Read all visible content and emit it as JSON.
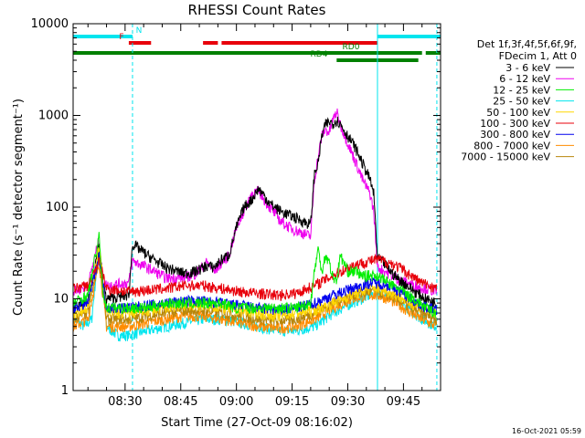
{
  "chart_data": {
    "type": "line",
    "title": "RHESSI Count Rates",
    "xlabel": "Start Time (27-Oct-09 08:16:02)",
    "ylabel": "Count Rate (s⁻¹ detector segment⁻¹)",
    "yscale": "log",
    "ylim": [
      1,
      10000
    ],
    "xlim_minutes_after_0816": [
      0,
      99
    ],
    "x_tick_labels": [
      "08:30",
      "08:45",
      "09:00",
      "09:15",
      "09:30",
      "09:45"
    ],
    "x_tick_minutes": [
      14,
      29,
      44,
      59,
      74,
      89
    ],
    "y_tick_labels": [
      "1",
      "10",
      "100",
      "1000",
      "10000"
    ],
    "y_tick_values": [
      1,
      10,
      100,
      1000,
      10000
    ],
    "legend_header": [
      "Det 1f,3f,4f,5f,6f,9f,",
      "FDecim 1, Att 0"
    ],
    "legend_placement": "right",
    "footer_date": "16-Oct-2021 05:59",
    "flags": [
      {
        "label": "N",
        "color": "#00e5ee",
        "segments": [
          [
            0,
            16
          ],
          [
            82,
            99
          ]
        ]
      },
      {
        "label": "F",
        "color": "#e8000b",
        "segments": [
          [
            15,
            21
          ],
          [
            35,
            39
          ],
          [
            40,
            82
          ]
        ]
      },
      {
        "label": "RD0",
        "color": "#008000",
        "segments": [
          [
            0,
            94
          ],
          [
            95,
            99
          ]
        ]
      },
      {
        "label": "RD4",
        "color": "#008000",
        "segments": [
          [
            71,
            93
          ]
        ]
      }
    ],
    "vertical_lines": [
      {
        "x": 0,
        "color": "#00e5ee",
        "style": "solid"
      },
      {
        "x": 16,
        "color": "#00e5ee",
        "style": "dashed"
      },
      {
        "x": 82,
        "color": "#00e5ee",
        "style": "solid"
      },
      {
        "x": 98,
        "color": "#00e5ee",
        "style": "dashed"
      }
    ],
    "series": [
      {
        "name": "3 - 6 keV",
        "color": "#000000",
        "points": [
          [
            0,
            8
          ],
          [
            4,
            9
          ],
          [
            7,
            40
          ],
          [
            8,
            15
          ],
          [
            9,
            10
          ],
          [
            15,
            11
          ],
          [
            16,
            40
          ],
          [
            20,
            30
          ],
          [
            25,
            22
          ],
          [
            30,
            19
          ],
          [
            33,
            20
          ],
          [
            36,
            23
          ],
          [
            38,
            22
          ],
          [
            40,
            27
          ],
          [
            42,
            30
          ],
          [
            44,
            60
          ],
          [
            46,
            100
          ],
          [
            48,
            120
          ],
          [
            50,
            160
          ],
          [
            53,
            110
          ],
          [
            56,
            90
          ],
          [
            59,
            80
          ],
          [
            62,
            70
          ],
          [
            64,
            65
          ],
          [
            65,
            230
          ],
          [
            66,
            300
          ],
          [
            67,
            600
          ],
          [
            68,
            800
          ],
          [
            69,
            850
          ],
          [
            70,
            820
          ],
          [
            71,
            900
          ],
          [
            72,
            800
          ],
          [
            74,
            600
          ],
          [
            76,
            450
          ],
          [
            78,
            300
          ],
          [
            80,
            200
          ],
          [
            81,
            140
          ],
          [
            82,
            28
          ],
          [
            84,
            24
          ],
          [
            86,
            19
          ],
          [
            88,
            16
          ],
          [
            90,
            14
          ],
          [
            92,
            12
          ],
          [
            95,
            10
          ],
          [
            98,
            9
          ]
        ]
      },
      {
        "name": "6 - 12 keV",
        "color": "#ee00ee",
        "points": [
          [
            0,
            12
          ],
          [
            4,
            14
          ],
          [
            7,
            45
          ],
          [
            8,
            16
          ],
          [
            9,
            14
          ],
          [
            15,
            15
          ],
          [
            16,
            26
          ],
          [
            20,
            22
          ],
          [
            25,
            17
          ],
          [
            30,
            17
          ],
          [
            33,
            19
          ],
          [
            36,
            25
          ],
          [
            38,
            20
          ],
          [
            40,
            25
          ],
          [
            42,
            30
          ],
          [
            44,
            60
          ],
          [
            46,
            90
          ],
          [
            48,
            140
          ],
          [
            50,
            150
          ],
          [
            53,
            100
          ],
          [
            56,
            70
          ],
          [
            59,
            58
          ],
          [
            62,
            52
          ],
          [
            64,
            48
          ],
          [
            65,
            200
          ],
          [
            66,
            350
          ],
          [
            67,
            600
          ],
          [
            68,
            700
          ],
          [
            69,
            650
          ],
          [
            70,
            900
          ],
          [
            71,
            1100
          ],
          [
            72,
            800
          ],
          [
            74,
            500
          ],
          [
            76,
            320
          ],
          [
            78,
            200
          ],
          [
            80,
            140
          ],
          [
            81,
            90
          ],
          [
            82,
            22
          ],
          [
            84,
            20
          ],
          [
            86,
            18
          ],
          [
            88,
            16
          ],
          [
            90,
            15
          ],
          [
            92,
            14
          ],
          [
            95,
            13
          ],
          [
            98,
            12
          ]
        ]
      },
      {
        "name": "12 - 25 keV",
        "color": "#00ee00",
        "points": [
          [
            0,
            9
          ],
          [
            4,
            11
          ],
          [
            7,
            48
          ],
          [
            8,
            12
          ],
          [
            9,
            8
          ],
          [
            15,
            8
          ],
          [
            20,
            8
          ],
          [
            25,
            9
          ],
          [
            30,
            9
          ],
          [
            36,
            9
          ],
          [
            40,
            9
          ],
          [
            44,
            8
          ],
          [
            46,
            8
          ],
          [
            50,
            8
          ],
          [
            55,
            8
          ],
          [
            60,
            8
          ],
          [
            64,
            9
          ],
          [
            65,
            20
          ],
          [
            66,
            35
          ],
          [
            67,
            20
          ],
          [
            68,
            30
          ],
          [
            69,
            25
          ],
          [
            70,
            17
          ],
          [
            71,
            16
          ],
          [
            72,
            30
          ],
          [
            74,
            20
          ],
          [
            76,
            20
          ],
          [
            78,
            18
          ],
          [
            80,
            18
          ],
          [
            82,
            18
          ],
          [
            84,
            16
          ],
          [
            86,
            14
          ],
          [
            88,
            13
          ],
          [
            90,
            11
          ],
          [
            92,
            10
          ],
          [
            95,
            8
          ],
          [
            98,
            7
          ]
        ]
      },
      {
        "name": "25 - 50 keV",
        "color": "#00e5ee",
        "points": [
          [
            0,
            6
          ],
          [
            3,
            5
          ],
          [
            5,
            6
          ],
          [
            7,
            40
          ],
          [
            9,
            5
          ],
          [
            12,
            4
          ],
          [
            15,
            4
          ],
          [
            20,
            4.5
          ],
          [
            25,
            5
          ],
          [
            30,
            5.5
          ],
          [
            35,
            6
          ],
          [
            40,
            6
          ],
          [
            45,
            5.5
          ],
          [
            50,
            5
          ],
          [
            55,
            4.5
          ],
          [
            60,
            4.5
          ],
          [
            65,
            5
          ],
          [
            70,
            7
          ],
          [
            75,
            9
          ],
          [
            80,
            11
          ],
          [
            82,
            12
          ],
          [
            85,
            11
          ],
          [
            88,
            9
          ],
          [
            91,
            7.5
          ],
          [
            94,
            6
          ],
          [
            98,
            5
          ]
        ]
      },
      {
        "name": "50 - 100 keV",
        "color": "#ffd700",
        "points": [
          [
            0,
            7
          ],
          [
            4,
            8
          ],
          [
            7,
            38
          ],
          [
            9,
            7
          ],
          [
            15,
            7
          ],
          [
            20,
            7.5
          ],
          [
            25,
            8
          ],
          [
            30,
            8.5
          ],
          [
            35,
            8.5
          ],
          [
            40,
            8
          ],
          [
            45,
            7.5
          ],
          [
            50,
            7
          ],
          [
            55,
            6.5
          ],
          [
            60,
            7
          ],
          [
            65,
            7.5
          ],
          [
            70,
            9
          ],
          [
            75,
            11
          ],
          [
            80,
            13
          ],
          [
            82,
            13
          ],
          [
            85,
            12
          ],
          [
            88,
            10.5
          ],
          [
            91,
            9
          ],
          [
            94,
            8
          ],
          [
            98,
            7
          ]
        ]
      },
      {
        "name": "100 - 300 keV",
        "color": "#e8000b",
        "points": [
          [
            0,
            13
          ],
          [
            4,
            14
          ],
          [
            7,
            26
          ],
          [
            9,
            13
          ],
          [
            15,
            12
          ],
          [
            20,
            12.5
          ],
          [
            25,
            13
          ],
          [
            30,
            14
          ],
          [
            35,
            14
          ],
          [
            40,
            13
          ],
          [
            45,
            12
          ],
          [
            50,
            11.5
          ],
          [
            55,
            11
          ],
          [
            60,
            11.5
          ],
          [
            65,
            14
          ],
          [
            70,
            18
          ],
          [
            75,
            23
          ],
          [
            80,
            26
          ],
          [
            82,
            27
          ],
          [
            85,
            25
          ],
          [
            88,
            22
          ],
          [
            91,
            18
          ],
          [
            94,
            15
          ],
          [
            98,
            13
          ]
        ]
      },
      {
        "name": "300 - 800 keV",
        "color": "#0000ee",
        "points": [
          [
            0,
            8
          ],
          [
            4,
            9
          ],
          [
            7,
            30
          ],
          [
            9,
            8
          ],
          [
            15,
            8
          ],
          [
            20,
            8.5
          ],
          [
            25,
            9
          ],
          [
            30,
            9.5
          ],
          [
            35,
            9.5
          ],
          [
            40,
            9
          ],
          [
            45,
            8.5
          ],
          [
            50,
            8
          ],
          [
            55,
            7.5
          ],
          [
            60,
            8
          ],
          [
            65,
            9
          ],
          [
            70,
            11
          ],
          [
            75,
            13
          ],
          [
            80,
            15
          ],
          [
            82,
            15
          ],
          [
            85,
            14
          ],
          [
            88,
            12
          ],
          [
            91,
            10
          ],
          [
            94,
            8.5
          ],
          [
            98,
            7.5
          ]
        ]
      },
      {
        "name": "800 - 7000 keV",
        "color": "#ff8c00",
        "points": [
          [
            0,
            5
          ],
          [
            4,
            6
          ],
          [
            7,
            25
          ],
          [
            9,
            5
          ],
          [
            15,
            5
          ],
          [
            20,
            5.5
          ],
          [
            25,
            6
          ],
          [
            30,
            6.5
          ],
          [
            35,
            6.5
          ],
          [
            40,
            6
          ],
          [
            45,
            5.5
          ],
          [
            50,
            5
          ],
          [
            55,
            4.8
          ],
          [
            60,
            5
          ],
          [
            65,
            6
          ],
          [
            70,
            8
          ],
          [
            75,
            10
          ],
          [
            80,
            11
          ],
          [
            82,
            11
          ],
          [
            85,
            10
          ],
          [
            88,
            8.5
          ],
          [
            91,
            7
          ],
          [
            94,
            6
          ],
          [
            98,
            5
          ]
        ]
      },
      {
        "name": "7000 - 15000 keV",
        "color": "#b8860b",
        "points": [
          [
            0,
            6
          ],
          [
            4,
            7
          ],
          [
            7,
            28
          ],
          [
            9,
            6
          ],
          [
            15,
            6
          ],
          [
            20,
            6.5
          ],
          [
            25,
            7
          ],
          [
            30,
            7.5
          ],
          [
            35,
            7.5
          ],
          [
            40,
            7
          ],
          [
            45,
            6.5
          ],
          [
            50,
            6
          ],
          [
            55,
            5.8
          ],
          [
            60,
            6
          ],
          [
            65,
            7
          ],
          [
            70,
            9
          ],
          [
            75,
            11
          ],
          [
            80,
            12
          ],
          [
            82,
            12
          ],
          [
            85,
            11
          ],
          [
            88,
            9.5
          ],
          [
            91,
            8
          ],
          [
            94,
            7
          ],
          [
            98,
            6
          ]
        ]
      }
    ]
  }
}
